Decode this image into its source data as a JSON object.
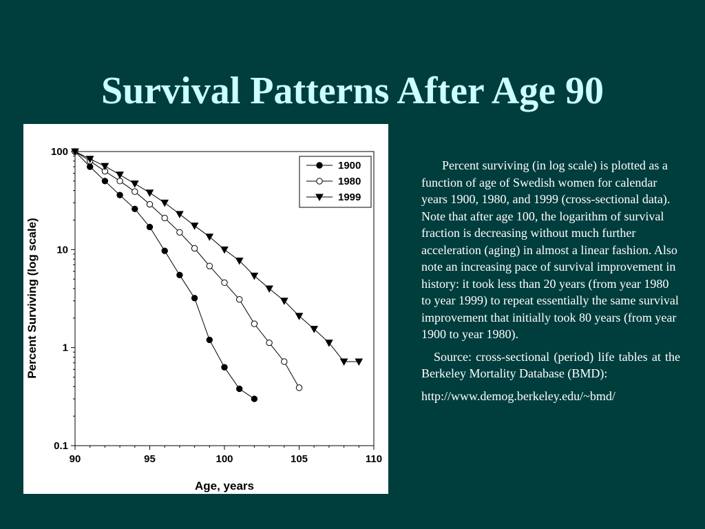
{
  "slide": {
    "title": "Survival Patterns After Age 90"
  },
  "description": {
    "paragraph1": "Percent surviving (in log scale) is plotted as a function of age of Swedish women for calendar years 1900, 1980, and 1999 (cross-sectional data).  Note that after age 100, the logarithm of survival fraction is decreasing without much further acceleration (aging) in almost a linear fashion.  Also note an increasing pace of survival improvement in history: it took less than 20 years (from year 1980 to year 1999) to repeat essentially the same survival improvement that initially took 80 years (from year 1900 to year 1980).",
    "paragraph2": "Source: cross-sectional (period) life tables at the Berkeley Mortality Database (BMD):",
    "url": "http://www.demog.berkeley.edu/~bmd/"
  },
  "chart_data": {
    "type": "line",
    "xlabel": "Age, years",
    "ylabel": "Percent Surviving (log scale)",
    "xlim": [
      90,
      110
    ],
    "ylim": [
      0.1,
      100
    ],
    "yscale": "log",
    "grid": false,
    "legend_position": "top-right",
    "x_ticks": [
      "90",
      "95",
      "100",
      "105",
      "110"
    ],
    "y_ticks": [
      "0.1",
      "1",
      "10",
      "100"
    ],
    "series": [
      {
        "name": "1900",
        "marker": "filled-circle",
        "x": [
          90,
          91,
          92,
          93,
          94,
          95,
          96,
          97,
          98,
          99,
          100,
          101,
          102
        ],
        "y": [
          100,
          70,
          50,
          36,
          26,
          17,
          9.7,
          5.5,
          3.2,
          1.2,
          0.63,
          0.38,
          0.3
        ]
      },
      {
        "name": "1980",
        "marker": "open-circle",
        "x": [
          90,
          91,
          92,
          93,
          94,
          95,
          96,
          97,
          98,
          99,
          100,
          101,
          102,
          103,
          104,
          105
        ],
        "y": [
          100,
          80,
          63,
          50,
          39,
          29,
          21,
          15,
          10.3,
          6.8,
          4.6,
          3.1,
          1.75,
          1.12,
          0.72,
          0.39
        ]
      },
      {
        "name": "1999",
        "marker": "filled-triangle-down",
        "x": [
          90,
          91,
          92,
          93,
          94,
          95,
          96,
          97,
          98,
          99,
          100,
          101,
          102,
          103,
          104,
          105,
          106,
          107,
          108,
          109
        ],
        "y": [
          100,
          84,
          71,
          58,
          47,
          38,
          30,
          23,
          17.5,
          13.5,
          10,
          7.7,
          5.4,
          4.0,
          3.0,
          2.1,
          1.55,
          1.12,
          0.72,
          0.72
        ]
      }
    ]
  }
}
